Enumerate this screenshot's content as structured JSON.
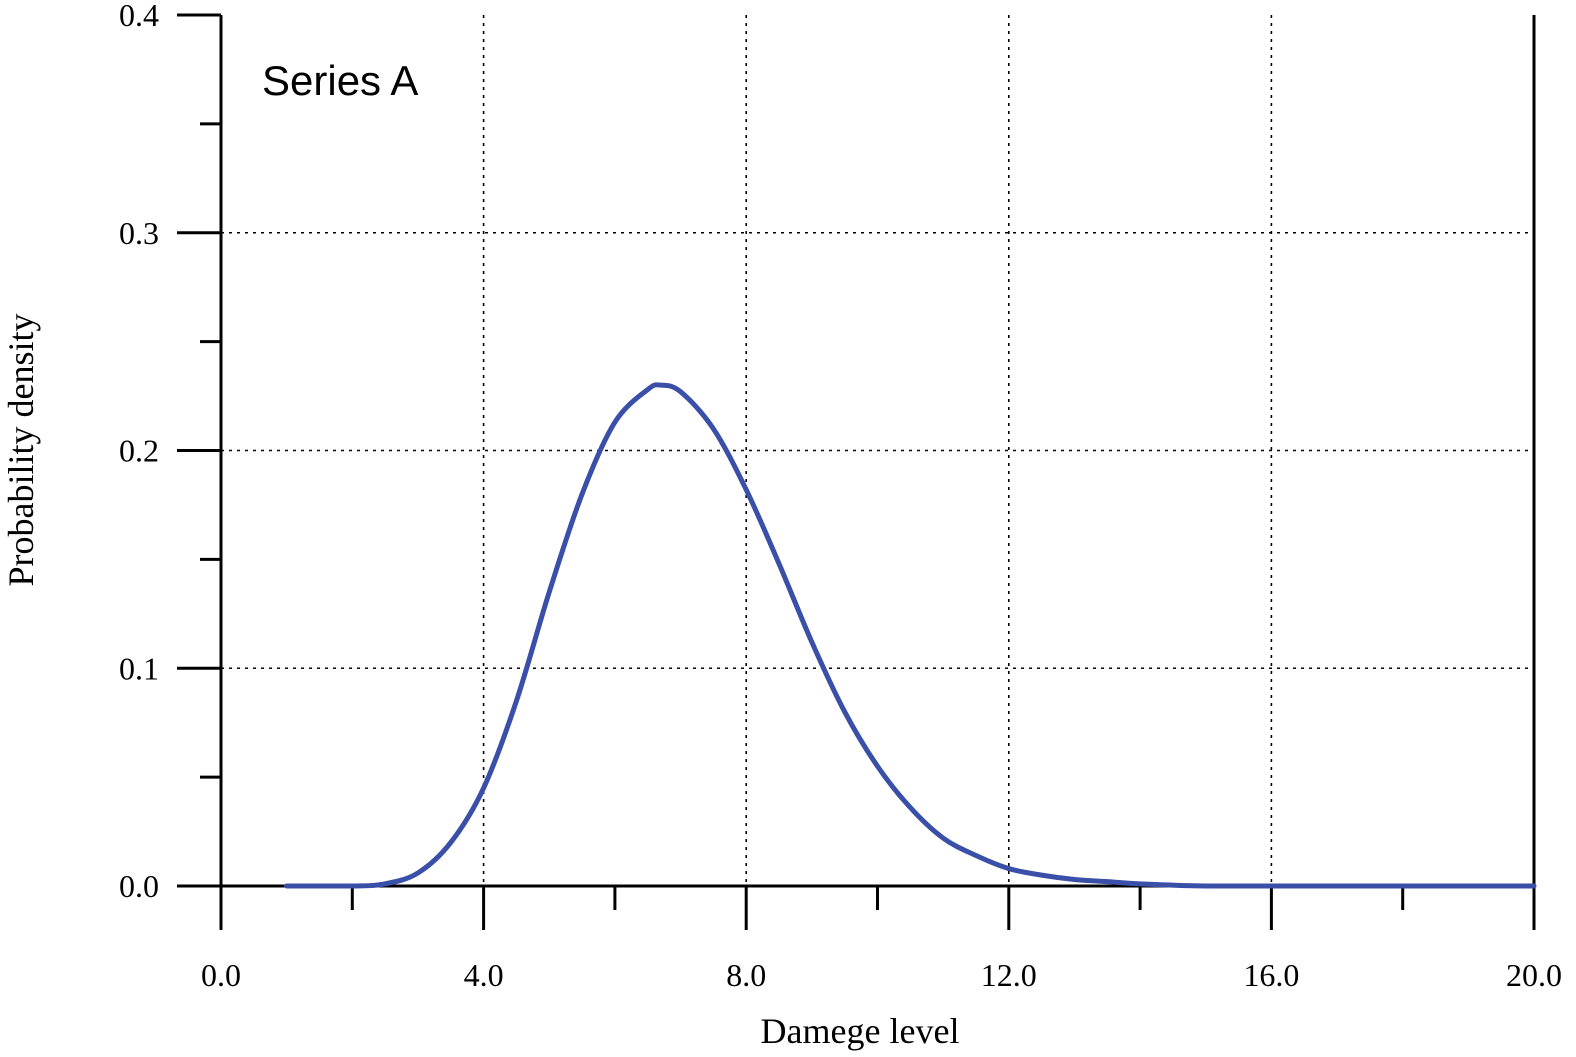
{
  "chart_data": {
    "type": "line",
    "title": "",
    "annotation": "Series A",
    "xlabel": "Damege level",
    "ylabel": "Probability density",
    "xlim": [
      0,
      20
    ],
    "ylim": [
      0,
      0.4
    ],
    "x_tick_labels": [
      "0.0",
      "4.0",
      "8.0",
      "12.0",
      "16.0",
      "20.0"
    ],
    "x_tick_values": [
      0,
      4,
      8,
      12,
      16,
      20
    ],
    "x_minor_tick_values": [
      2,
      6,
      10,
      14,
      18
    ],
    "y_tick_labels": [
      "0.0",
      "0.1",
      "0.2",
      "0.3",
      "0.4"
    ],
    "y_tick_values": [
      0,
      0.1,
      0.2,
      0.3,
      0.4
    ],
    "y_minor_tick_values": [
      0.05,
      0.15,
      0.25,
      0.35
    ],
    "grid": "dotted",
    "line_color": "#3a4fa8",
    "series": [
      {
        "x": [
          1.0,
          2.0,
          2.5,
          3.0,
          3.5,
          4.0,
          4.5,
          5.0,
          5.5,
          6.0,
          6.5,
          6.7,
          7.0,
          7.5,
          8.0,
          8.5,
          9.0,
          9.5,
          10.0,
          10.5,
          11.0,
          11.5,
          12.0,
          12.5,
          13.0,
          13.5,
          14.0,
          15.0,
          16.0,
          18.0,
          20.0
        ],
        "y": [
          0.0,
          0.0,
          0.001,
          0.006,
          0.02,
          0.045,
          0.085,
          0.135,
          0.18,
          0.213,
          0.228,
          0.23,
          0.227,
          0.21,
          0.182,
          0.148,
          0.112,
          0.08,
          0.055,
          0.036,
          0.022,
          0.014,
          0.008,
          0.005,
          0.003,
          0.002,
          0.001,
          0.0,
          0.0,
          0.0,
          0.0
        ]
      }
    ]
  }
}
